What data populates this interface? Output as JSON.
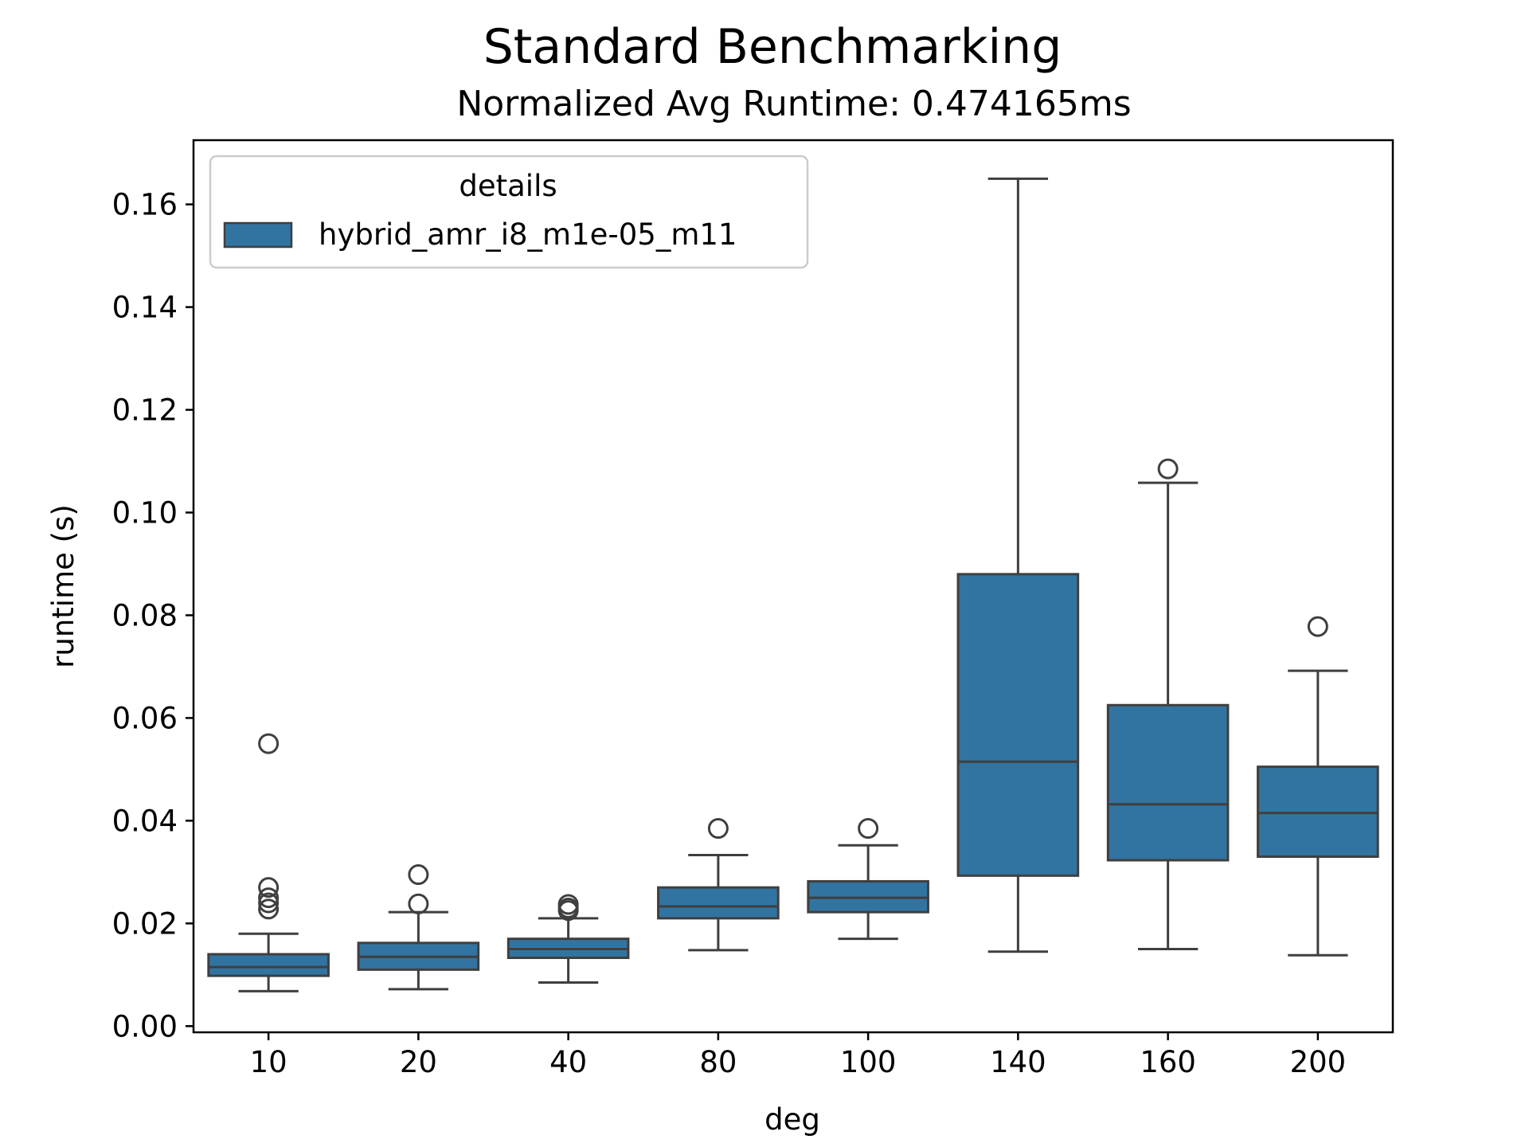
{
  "chart_data": {
    "type": "box",
    "title": "Standard Benchmarking",
    "subtitle": "Normalized Avg Runtime: 0.474165ms",
    "xlabel": "deg",
    "ylabel": "runtime (s)",
    "ylim": [
      -0.0012,
      0.1725
    ],
    "yticks": [
      0.0,
      0.02,
      0.04,
      0.06,
      0.08,
      0.1,
      0.12,
      0.14,
      0.16
    ],
    "ytick_labels": [
      "0.00",
      "0.02",
      "0.04",
      "0.06",
      "0.08",
      "0.10",
      "0.12",
      "0.14",
      "0.16"
    ],
    "categories": [
      "10",
      "20",
      "40",
      "80",
      "100",
      "140",
      "160",
      "200"
    ],
    "legend": {
      "title": "details",
      "placement": "upper-left",
      "entries": [
        {
          "label": "hybrid_amr_i8_m1e-05_m11",
          "color": "#3274a1"
        }
      ]
    },
    "series": [
      {
        "name": "hybrid_amr_i8_m1e-05_m11",
        "color": "#3274a1",
        "boxes": [
          {
            "category": "10",
            "whisker_low": 0.0068,
            "q1": 0.0098,
            "median": 0.0115,
            "q3": 0.014,
            "whisker_high": 0.018,
            "outliers": [
              0.0228,
              0.024,
              0.025,
              0.027,
              0.055
            ]
          },
          {
            "category": "20",
            "whisker_low": 0.0072,
            "q1": 0.011,
            "median": 0.0135,
            "q3": 0.0162,
            "whisker_high": 0.0222,
            "outliers": [
              0.0238,
              0.0295
            ]
          },
          {
            "category": "40",
            "whisker_low": 0.0085,
            "q1": 0.0133,
            "median": 0.015,
            "q3": 0.017,
            "whisker_high": 0.021,
            "outliers": [
              0.0225,
              0.023,
              0.0237
            ]
          },
          {
            "category": "80",
            "whisker_low": 0.0148,
            "q1": 0.021,
            "median": 0.0233,
            "q3": 0.027,
            "whisker_high": 0.0333,
            "outliers": [
              0.0385
            ]
          },
          {
            "category": "100",
            "whisker_low": 0.017,
            "q1": 0.0222,
            "median": 0.025,
            "q3": 0.0282,
            "whisker_high": 0.0352,
            "outliers": [
              0.0385
            ]
          },
          {
            "category": "140",
            "whisker_low": 0.0145,
            "q1": 0.0293,
            "median": 0.0515,
            "q3": 0.088,
            "whisker_high": 0.165,
            "outliers": []
          },
          {
            "category": "160",
            "whisker_low": 0.015,
            "q1": 0.0323,
            "median": 0.0432,
            "q3": 0.0625,
            "whisker_high": 0.1058,
            "outliers": [
              0.1085
            ]
          },
          {
            "category": "200",
            "whisker_low": 0.0138,
            "q1": 0.033,
            "median": 0.0415,
            "q3": 0.0505,
            "whisker_high": 0.0692,
            "outliers": [
              0.0778
            ]
          }
        ]
      }
    ],
    "colors": {
      "box_fill": "#3274a1",
      "line": "#3f3f3f",
      "axis": "#000000",
      "legend_border": "#cccccc"
    }
  }
}
